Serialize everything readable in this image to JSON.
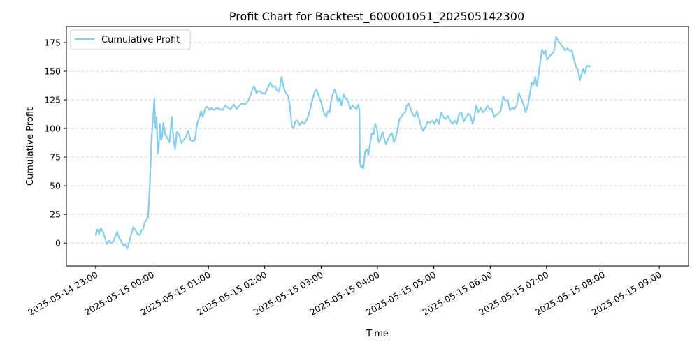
{
  "chart_data": {
    "type": "line",
    "title": "Profit Chart for Backtest_600001051_202505142300",
    "xlabel": "Time",
    "ylabel": "Cumulative Profit",
    "xlim_hours": [
      -0.52,
      10.52
    ],
    "ylim": [
      -20,
      189
    ],
    "yticks": [
      0,
      25,
      50,
      75,
      100,
      125,
      150,
      175
    ],
    "xticks": [
      {
        "h": 0,
        "label": "2025-05-14 23:00"
      },
      {
        "h": 1,
        "label": "2025-05-15 00:00"
      },
      {
        "h": 2,
        "label": "2025-05-15 01:00"
      },
      {
        "h": 3,
        "label": "2025-05-15 02:00"
      },
      {
        "h": 4,
        "label": "2025-05-15 03:00"
      },
      {
        "h": 5,
        "label": "2025-05-15 04:00"
      },
      {
        "h": 6,
        "label": "2025-05-15 05:00"
      },
      {
        "h": 7,
        "label": "2025-05-15 06:00"
      },
      {
        "h": 8,
        "label": "2025-05-15 07:00"
      },
      {
        "h": 9,
        "label": "2025-05-15 08:00"
      },
      {
        "h": 10,
        "label": "2025-05-15 09:00"
      }
    ],
    "grid": "y-dashed",
    "legend_position": "upper-left",
    "series": [
      {
        "name": "Cumulative Profit",
        "color": "#87ceeb",
        "x_unit": "hours since 2025-05-14 23:00",
        "points": [
          [
            0.0,
            7
          ],
          [
            0.03,
            12
          ],
          [
            0.06,
            8
          ],
          [
            0.09,
            13
          ],
          [
            0.13,
            10
          ],
          [
            0.17,
            4
          ],
          [
            0.2,
            -1
          ],
          [
            0.24,
            2
          ],
          [
            0.27,
            0
          ],
          [
            0.31,
            1
          ],
          [
            0.35,
            6
          ],
          [
            0.38,
            10
          ],
          [
            0.42,
            4
          ],
          [
            0.45,
            2
          ],
          [
            0.49,
            -2
          ],
          [
            0.52,
            -1
          ],
          [
            0.56,
            -5
          ],
          [
            0.6,
            2
          ],
          [
            0.63,
            8
          ],
          [
            0.67,
            14
          ],
          [
            0.71,
            11
          ],
          [
            0.74,
            8
          ],
          [
            0.78,
            7
          ],
          [
            0.81,
            11
          ],
          [
            0.84,
            12
          ],
          [
            0.87,
            18
          ],
          [
            0.9,
            20
          ],
          [
            0.93,
            23
          ],
          [
            0.96,
            50
          ],
          [
            0.99,
            90
          ],
          [
            1.02,
            110
          ],
          [
            1.04,
            126
          ],
          [
            1.06,
            100
          ],
          [
            1.08,
            110
          ],
          [
            1.1,
            78
          ],
          [
            1.12,
            85
          ],
          [
            1.14,
            104
          ],
          [
            1.16,
            90
          ],
          [
            1.18,
            93
          ],
          [
            1.2,
            105
          ],
          [
            1.23,
            95
          ],
          [
            1.27,
            92
          ],
          [
            1.31,
            88
          ],
          [
            1.35,
            110
          ],
          [
            1.38,
            90
          ],
          [
            1.41,
            82
          ],
          [
            1.44,
            97
          ],
          [
            1.48,
            95
          ],
          [
            1.52,
            87
          ],
          [
            1.56,
            90
          ],
          [
            1.6,
            93
          ],
          [
            1.64,
            98
          ],
          [
            1.68,
            90
          ],
          [
            1.72,
            89
          ],
          [
            1.76,
            90
          ],
          [
            1.8,
            104
          ],
          [
            1.84,
            110
          ],
          [
            1.87,
            115
          ],
          [
            1.9,
            110
          ],
          [
            1.94,
            117
          ],
          [
            1.98,
            119
          ],
          [
            2.02,
            116
          ],
          [
            2.06,
            118
          ],
          [
            2.1,
            116
          ],
          [
            2.15,
            118
          ],
          [
            2.2,
            117
          ],
          [
            2.25,
            116
          ],
          [
            2.3,
            120
          ],
          [
            2.35,
            118
          ],
          [
            2.4,
            117
          ],
          [
            2.45,
            121
          ],
          [
            2.5,
            117
          ],
          [
            2.55,
            120
          ],
          [
            2.6,
            122
          ],
          [
            2.65,
            121
          ],
          [
            2.7,
            124
          ],
          [
            2.74,
            128
          ],
          [
            2.78,
            134
          ],
          [
            2.81,
            137
          ],
          [
            2.85,
            131
          ],
          [
            2.9,
            133
          ],
          [
            2.95,
            131
          ],
          [
            3.0,
            130
          ],
          [
            3.05,
            135
          ],
          [
            3.1,
            140
          ],
          [
            3.14,
            136
          ],
          [
            3.18,
            137
          ],
          [
            3.22,
            133
          ],
          [
            3.26,
            132
          ],
          [
            3.28,
            140
          ],
          [
            3.3,
            145
          ],
          [
            3.33,
            137
          ],
          [
            3.36,
            132
          ],
          [
            3.39,
            130
          ],
          [
            3.42,
            128
          ],
          [
            3.45,
            118
          ],
          [
            3.48,
            102
          ],
          [
            3.51,
            100
          ],
          [
            3.54,
            106
          ],
          [
            3.58,
            107
          ],
          [
            3.62,
            103
          ],
          [
            3.66,
            106
          ],
          [
            3.7,
            104
          ],
          [
            3.74,
            107
          ],
          [
            3.78,
            112
          ],
          [
            3.82,
            120
          ],
          [
            3.85,
            126
          ],
          [
            3.88,
            131
          ],
          [
            3.92,
            134
          ],
          [
            3.96,
            128
          ],
          [
            4.0,
            123
          ],
          [
            4.03,
            117
          ],
          [
            4.06,
            113
          ],
          [
            4.09,
            110
          ],
          [
            4.12,
            115
          ],
          [
            4.15,
            114
          ],
          [
            4.18,
            125
          ],
          [
            4.21,
            130
          ],
          [
            4.24,
            134
          ],
          [
            4.27,
            130
          ],
          [
            4.3,
            123
          ],
          [
            4.33,
            127
          ],
          [
            4.36,
            120
          ],
          [
            4.4,
            130
          ],
          [
            4.43,
            126
          ],
          [
            4.46,
            126
          ],
          [
            4.49,
            122
          ],
          [
            4.52,
            117
          ],
          [
            4.56,
            120
          ],
          [
            4.6,
            118
          ],
          [
            4.63,
            117
          ],
          [
            4.66,
            121
          ],
          [
            4.68,
            116
          ],
          [
            4.69,
            70
          ],
          [
            4.71,
            66
          ],
          [
            4.73,
            68
          ],
          [
            4.75,
            65
          ],
          [
            4.78,
            80
          ],
          [
            4.81,
            82
          ],
          [
            4.84,
            77
          ],
          [
            4.87,
            87
          ],
          [
            4.9,
            96
          ],
          [
            4.93,
            95
          ],
          [
            4.96,
            104
          ],
          [
            4.99,
            100
          ],
          [
            5.02,
            88
          ],
          [
            5.05,
            90
          ],
          [
            5.09,
            97
          ],
          [
            5.12,
            91
          ],
          [
            5.15,
            86
          ],
          [
            5.18,
            90
          ],
          [
            5.22,
            94
          ],
          [
            5.26,
            96
          ],
          [
            5.29,
            88
          ],
          [
            5.33,
            93
          ],
          [
            5.36,
            100
          ],
          [
            5.39,
            108
          ],
          [
            5.42,
            110
          ],
          [
            5.46,
            113
          ],
          [
            5.49,
            114
          ],
          [
            5.52,
            120
          ],
          [
            5.55,
            122
          ],
          [
            5.58,
            118
          ],
          [
            5.62,
            113
          ],
          [
            5.66,
            110
          ],
          [
            5.7,
            115
          ],
          [
            5.74,
            108
          ],
          [
            5.78,
            101
          ],
          [
            5.81,
            98
          ],
          [
            5.85,
            101
          ],
          [
            5.89,
            106
          ],
          [
            5.93,
            105
          ],
          [
            5.97,
            107
          ],
          [
            6.01,
            104
          ],
          [
            6.05,
            108
          ],
          [
            6.09,
            104
          ],
          [
            6.13,
            114
          ],
          [
            6.17,
            110
          ],
          [
            6.21,
            108
          ],
          [
            6.25,
            111
          ],
          [
            6.29,
            107
          ],
          [
            6.33,
            104
          ],
          [
            6.37,
            107
          ],
          [
            6.41,
            104
          ],
          [
            6.45,
            113
          ],
          [
            6.49,
            114
          ],
          [
            6.53,
            106
          ],
          [
            6.57,
            110
          ],
          [
            6.61,
            113
          ],
          [
            6.65,
            111
          ],
          [
            6.69,
            104
          ],
          [
            6.72,
            110
          ],
          [
            6.75,
            120
          ],
          [
            6.79,
            114
          ],
          [
            6.83,
            118
          ],
          [
            6.87,
            114
          ],
          [
            6.91,
            116
          ],
          [
            6.95,
            120
          ],
          [
            6.99,
            117
          ],
          [
            7.03,
            117
          ],
          [
            7.07,
            110
          ],
          [
            7.11,
            112
          ],
          [
            7.15,
            113
          ],
          [
            7.19,
            116
          ],
          [
            7.23,
            128
          ],
          [
            7.27,
            124
          ],
          [
            7.31,
            125
          ],
          [
            7.35,
            116
          ],
          [
            7.39,
            118
          ],
          [
            7.43,
            117
          ],
          [
            7.47,
            120
          ],
          [
            7.51,
            131
          ],
          [
            7.55,
            126
          ],
          [
            7.59,
            121
          ],
          [
            7.63,
            114
          ],
          [
            7.67,
            120
          ],
          [
            7.71,
            132
          ],
          [
            7.74,
            140
          ],
          [
            7.77,
            138
          ],
          [
            7.8,
            145
          ],
          [
            7.83,
            137
          ],
          [
            7.86,
            148
          ],
          [
            7.89,
            158
          ],
          [
            7.92,
            169
          ],
          [
            7.95,
            165
          ],
          [
            7.98,
            168
          ],
          [
            8.01,
            160
          ],
          [
            8.05,
            163
          ],
          [
            8.09,
            165
          ],
          [
            8.13,
            167
          ],
          [
            8.17,
            180
          ],
          [
            8.21,
            176
          ],
          [
            8.25,
            174
          ],
          [
            8.29,
            171
          ],
          [
            8.33,
            168
          ],
          [
            8.37,
            170
          ],
          [
            8.41,
            168
          ],
          [
            8.45,
            168
          ],
          [
            8.49,
            160
          ],
          [
            8.53,
            153
          ],
          [
            8.56,
            151
          ],
          [
            8.59,
            142
          ],
          [
            8.62,
            147
          ],
          [
            8.65,
            152
          ],
          [
            8.68,
            148
          ],
          [
            8.71,
            154
          ],
          [
            8.74,
            155
          ],
          [
            8.77,
            154
          ]
        ]
      }
    ]
  }
}
